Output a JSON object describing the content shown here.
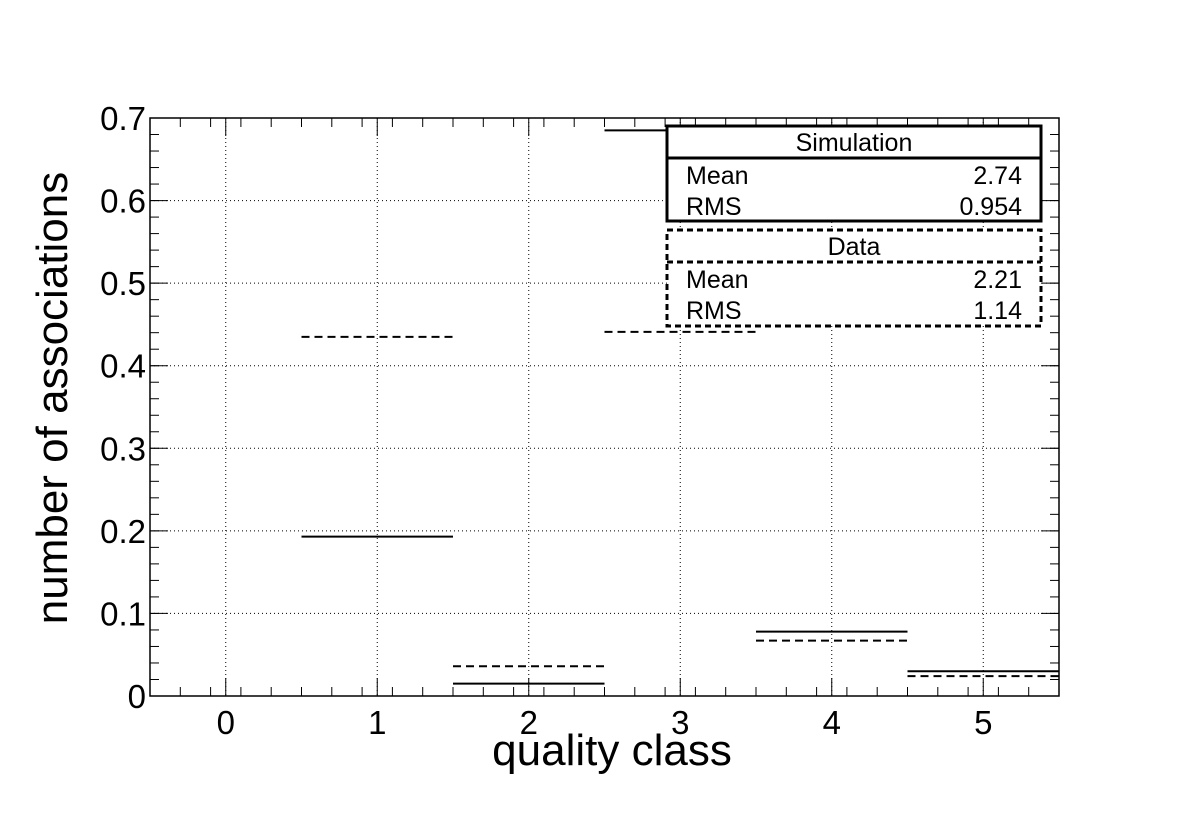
{
  "chart_data": {
    "type": "histogram",
    "title": "",
    "xlabel": "quality class",
    "ylabel": "number of associations",
    "xlim": [
      -0.5,
      5.5
    ],
    "ylim": [
      0,
      0.7
    ],
    "grid": true,
    "x_ticks": [
      "0",
      "1",
      "2",
      "3",
      "4",
      "5"
    ],
    "y_ticks": [
      "0",
      "0.1",
      "0.2",
      "0.3",
      "0.4",
      "0.5",
      "0.6",
      "0.7"
    ],
    "bin_centers": [
      0,
      1,
      2,
      3,
      4,
      5
    ],
    "series": [
      {
        "name": "Simulation",
        "line_style": "solid",
        "values": [
          0,
          0.193,
          0.015,
          0.685,
          0.078,
          0.03
        ],
        "stats": {
          "mean_label": "Mean",
          "mean": "2.74",
          "rms_label": "RMS",
          "rms": "0.954"
        }
      },
      {
        "name": "Data",
        "line_style": "dashed",
        "values": [
          0,
          0.435,
          0.036,
          0.441,
          0.067,
          0.024
        ],
        "stats": {
          "mean_label": "Mean",
          "mean": "2.21",
          "rms_label": "RMS",
          "rms": "1.14"
        }
      }
    ],
    "legend_position": "top-right"
  },
  "colors": {
    "line": "#000000",
    "grid": "#000000",
    "background": "#ffffff"
  }
}
